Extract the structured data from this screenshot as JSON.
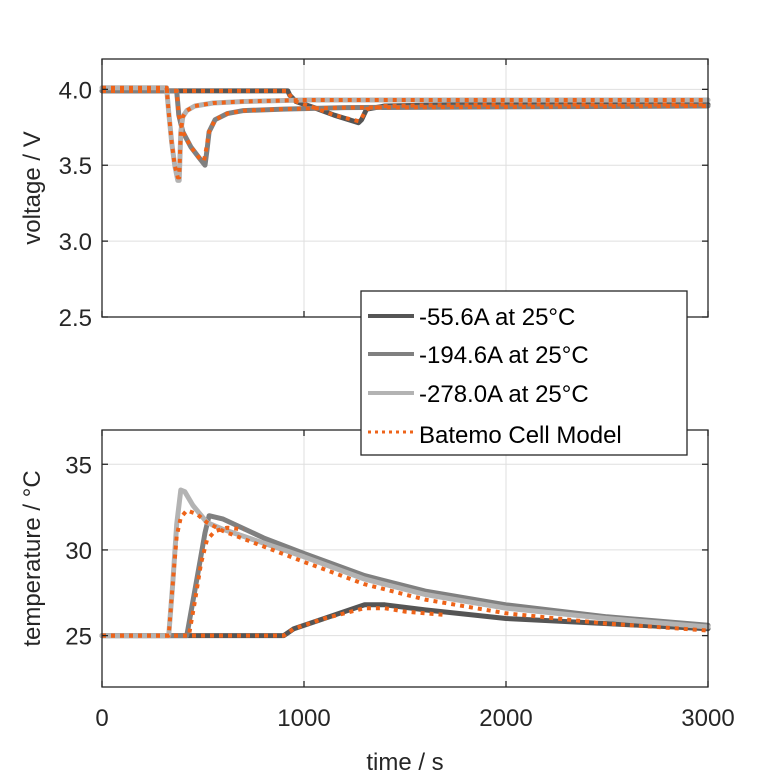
{
  "chart_data": [
    {
      "type": "line",
      "id": "voltage",
      "xlabel": "",
      "ylabel": "voltage / V",
      "xlim": [
        0,
        3000
      ],
      "ylim": [
        2.5,
        4.2
      ],
      "xticks": [
        0,
        1000,
        2000,
        3000
      ],
      "yticks": [
        2.5,
        3.0,
        3.5,
        4.0
      ],
      "ytick_labels": [
        "2.5",
        "3.0",
        "3.5",
        "4.0"
      ],
      "show_xtick_labels": false,
      "grid": true,
      "series": [
        {
          "name": "-55.6A at 25°C",
          "color": "#555555",
          "style": "solid",
          "x": [
            0,
            920,
            930,
            960,
            1050,
            1150,
            1270,
            1285,
            1310,
            1400,
            1600,
            2000,
            3000
          ],
          "y": [
            3.99,
            3.99,
            3.96,
            3.92,
            3.88,
            3.83,
            3.78,
            3.8,
            3.87,
            3.89,
            3.895,
            3.9,
            3.9
          ]
        },
        {
          "name": "-194.6A at 25°C",
          "color": "#808080",
          "style": "solid",
          "x": [
            0,
            370,
            380,
            400,
            440,
            480,
            510,
            520,
            530,
            560,
            620,
            700,
            900,
            1200,
            3000
          ],
          "y": [
            3.99,
            3.99,
            3.83,
            3.72,
            3.62,
            3.55,
            3.5,
            3.6,
            3.72,
            3.8,
            3.84,
            3.86,
            3.87,
            3.88,
            3.89
          ]
        },
        {
          "name": "-278.0A at 25°C",
          "color": "#b3b3b3",
          "style": "solid",
          "x": [
            0,
            320,
            330,
            345,
            360,
            375,
            382,
            390,
            400,
            420,
            460,
            550,
            700,
            1000,
            3000
          ],
          "y": [
            4.01,
            4.01,
            3.85,
            3.65,
            3.5,
            3.4,
            3.4,
            3.72,
            3.82,
            3.86,
            3.89,
            3.91,
            3.92,
            3.93,
            3.93
          ]
        },
        {
          "name": "Batemo Cell Model",
          "color": "#ee6319",
          "style": "dotted",
          "x": [
            0,
            320,
            330,
            345,
            360,
            375,
            382,
            390,
            400,
            420,
            460,
            550,
            700,
            1000,
            3000
          ],
          "y": [
            4.01,
            4.01,
            3.85,
            3.65,
            3.5,
            3.42,
            3.42,
            3.72,
            3.82,
            3.86,
            3.89,
            3.91,
            3.92,
            3.93,
            3.93
          ]
        },
        {
          "name": "Batemo Cell Model",
          "color": "#ee6319",
          "style": "dotted",
          "legend": false,
          "x": [
            0,
            370,
            380,
            400,
            440,
            480,
            505,
            515,
            530,
            560,
            620,
            700,
            900,
            1200,
            3000
          ],
          "y": [
            3.99,
            3.99,
            3.83,
            3.72,
            3.62,
            3.55,
            3.53,
            3.6,
            3.72,
            3.8,
            3.84,
            3.86,
            3.87,
            3.88,
            3.89
          ]
        },
        {
          "name": "Batemo Cell Model",
          "color": "#ee6319",
          "style": "dotted",
          "legend": false,
          "x": [
            0,
            920,
            930,
            960,
            1050,
            1150,
            1270,
            1285,
            1310,
            1400,
            1600,
            2000,
            3000
          ],
          "y": [
            3.99,
            3.99,
            3.96,
            3.92,
            3.88,
            3.83,
            3.79,
            3.81,
            3.87,
            3.89,
            3.895,
            3.9,
            3.9
          ]
        }
      ]
    },
    {
      "type": "line",
      "id": "temperature",
      "xlabel": "time / s",
      "ylabel": "temperature / °C",
      "xlim": [
        0,
        3000
      ],
      "ylim": [
        22,
        37
      ],
      "xticks": [
        0,
        1000,
        2000,
        3000
      ],
      "xtick_labels": [
        "0",
        "1000",
        "2000",
        "3000"
      ],
      "yticks": [
        25,
        30,
        35
      ],
      "ytick_labels": [
        "25",
        "30",
        "35"
      ],
      "grid": true,
      "series": [
        {
          "name": "-55.6A at 25°C",
          "color": "#555555",
          "style": "solid",
          "x": [
            0,
            900,
            950,
            1100,
            1300,
            1400,
            1600,
            2000,
            2500,
            3000
          ],
          "y": [
            25.0,
            25.0,
            25.4,
            26.0,
            26.8,
            26.8,
            26.5,
            26.0,
            25.7,
            25.4
          ]
        },
        {
          "name": "-194.6A at 25°C",
          "color": "#808080",
          "style": "solid",
          "x": [
            0,
            420,
            450,
            480,
            510,
            530,
            600,
            800,
            1000,
            1300,
            1600,
            2000,
            2500,
            3000
          ],
          "y": [
            25.0,
            25.0,
            27.0,
            29.0,
            31.0,
            32.0,
            31.8,
            30.7,
            29.8,
            28.5,
            27.6,
            26.8,
            26.1,
            25.6
          ]
        },
        {
          "name": "-278.0A at 25°C",
          "color": "#b3b3b3",
          "style": "solid",
          "x": [
            0,
            330,
            350,
            370,
            390,
            410,
            450,
            520,
            600,
            800,
            1000,
            1300,
            1600,
            2000,
            2500,
            3000
          ],
          "y": [
            25.0,
            25.0,
            28.0,
            31.5,
            33.5,
            33.4,
            32.6,
            31.6,
            31.2,
            30.4,
            29.6,
            28.3,
            27.4,
            26.6,
            26.0,
            25.5
          ]
        },
        {
          "name": "Batemo Cell Model",
          "color": "#ee6319",
          "style": "dotted",
          "x": [
            0,
            330,
            350,
            370,
            390,
            420,
            470,
            520,
            600,
            800,
            1000,
            1300,
            1600,
            2000,
            2500,
            3000
          ],
          "y": [
            25.0,
            25.0,
            28.0,
            30.8,
            31.9,
            32.3,
            32.1,
            31.6,
            31.1,
            30.2,
            29.3,
            28.0,
            27.1,
            26.3,
            25.7,
            25.3
          ]
        },
        {
          "name": "Batemo Cell Model",
          "color": "#ee6319",
          "style": "dotted",
          "legend": false,
          "x": [
            0,
            430,
            460,
            490,
            520,
            560,
            620,
            700
          ],
          "y": [
            25.0,
            25.0,
            27.0,
            29.2,
            30.6,
            31.1,
            31.3,
            31.2
          ]
        },
        {
          "name": "Batemo Cell Model",
          "color": "#ee6319",
          "style": "dotted",
          "legend": false,
          "x": [
            0,
            900,
            950,
            1100,
            1300,
            1400,
            1500,
            1700
          ],
          "y": [
            25.0,
            25.0,
            25.4,
            26.0,
            26.6,
            26.6,
            26.4,
            26.2
          ]
        }
      ]
    }
  ],
  "legend": {
    "placement": "center-right",
    "entries": [
      {
        "label": "-55.6A at 25°C",
        "color": "#555555",
        "style": "solid"
      },
      {
        "label": "-194.6A at 25°C",
        "color": "#808080",
        "style": "solid"
      },
      {
        "label": "-278.0A at 25°C",
        "color": "#b3b3b3",
        "style": "solid"
      },
      {
        "label": "Batemo Cell Model",
        "color": "#ee6319",
        "style": "dotted"
      }
    ]
  }
}
